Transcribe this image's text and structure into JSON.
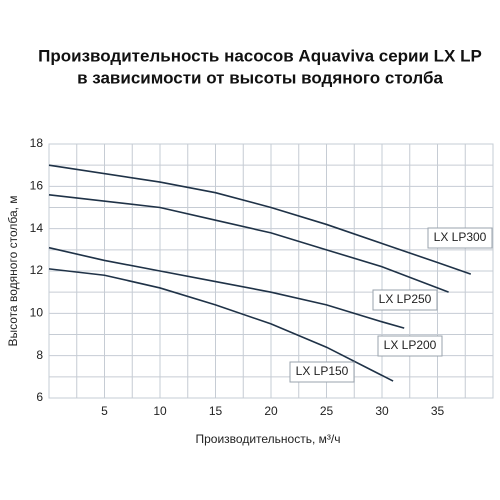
{
  "chart_data": {
    "type": "line",
    "title": [
      "Производительность насосов Aquaviva серии LX LP",
      "в зависимости от высоты водяного столба"
    ],
    "x_label": "Производительность, м³/ч",
    "y_label": "Высота водяного столба, м",
    "xlim": [
      0,
      40
    ],
    "ylim": [
      6,
      18
    ],
    "xticks": [
      5,
      10,
      15,
      20,
      25,
      30,
      35
    ],
    "yticks": [
      6,
      8,
      10,
      12,
      14,
      16,
      18
    ],
    "grid": true,
    "series": [
      {
        "name": "LX LP300",
        "color": "#1f3247",
        "x": [
          0,
          10,
          15,
          20,
          25,
          30,
          35,
          38
        ],
        "values": [
          17,
          16.2,
          15.7,
          15.0,
          14.2,
          13.3,
          12.4,
          11.85
        ]
      },
      {
        "name": "LX LP250",
        "color": "#1f3247",
        "x": [
          0,
          10,
          15,
          20,
          25,
          30,
          36
        ],
        "values": [
          15.6,
          15.0,
          14.4,
          13.8,
          13.0,
          12.2,
          11.0
        ]
      },
      {
        "name": "LX LP200",
        "color": "#1f3247",
        "x": [
          0,
          5,
          10,
          15,
          20,
          25,
          30,
          32
        ],
        "values": [
          13.1,
          12.5,
          12.0,
          11.5,
          11.0,
          10.4,
          9.6,
          9.3
        ]
      },
      {
        "name": "LX LP150",
        "color": "#1f3247",
        "x": [
          0,
          5,
          10,
          15,
          20,
          25,
          31
        ],
        "values": [
          12.1,
          11.8,
          11.2,
          10.4,
          9.5,
          8.4,
          6.8
        ]
      }
    ]
  }
}
